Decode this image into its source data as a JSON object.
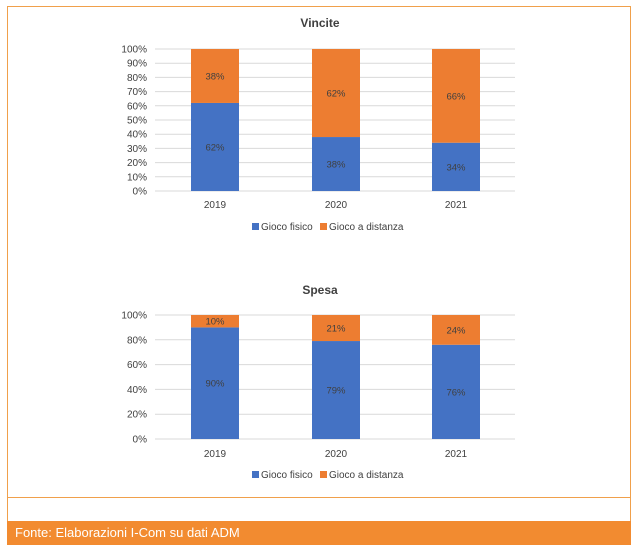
{
  "colors": {
    "fisico": "#4472c4",
    "distanza": "#ed7d31",
    "grid": "#d9d9d9",
    "frame": "#f0a04b",
    "footer_bg": "#f28b30"
  },
  "footer": {
    "source": "Fonte: Elaborazioni I-Com su dati ADM"
  },
  "chart_data": [
    {
      "type": "bar",
      "stacked": true,
      "title": "Vincite",
      "categories": [
        "2019",
        "2020",
        "2021"
      ],
      "series": [
        {
          "name": "Gioco fisico",
          "values": [
            62,
            38,
            34
          ],
          "labels": [
            "62%",
            "38%",
            "34%"
          ]
        },
        {
          "name": "Gioco a distanza",
          "values": [
            38,
            62,
            66
          ],
          "labels": [
            "38%",
            "62%",
            "66%"
          ]
        }
      ],
      "yticks": [
        "0%",
        "10%",
        "20%",
        "30%",
        "40%",
        "50%",
        "60%",
        "70%",
        "80%",
        "90%",
        "100%"
      ],
      "ylim": [
        0,
        100
      ],
      "grid": true,
      "legend": "bottom"
    },
    {
      "type": "bar",
      "stacked": true,
      "title": "Spesa",
      "categories": [
        "2019",
        "2020",
        "2021"
      ],
      "series": [
        {
          "name": "Gioco fisico",
          "values": [
            90,
            79,
            76
          ],
          "labels": [
            "90%",
            "79%",
            "76%"
          ]
        },
        {
          "name": "Gioco a distanza",
          "values": [
            10,
            21,
            24
          ],
          "labels": [
            "10%",
            "21%",
            "24%"
          ]
        }
      ],
      "yticks": [
        "0%",
        "20%",
        "40%",
        "60%",
        "80%",
        "100%"
      ],
      "ylim": [
        0,
        100
      ],
      "grid": true,
      "legend": "bottom"
    }
  ]
}
